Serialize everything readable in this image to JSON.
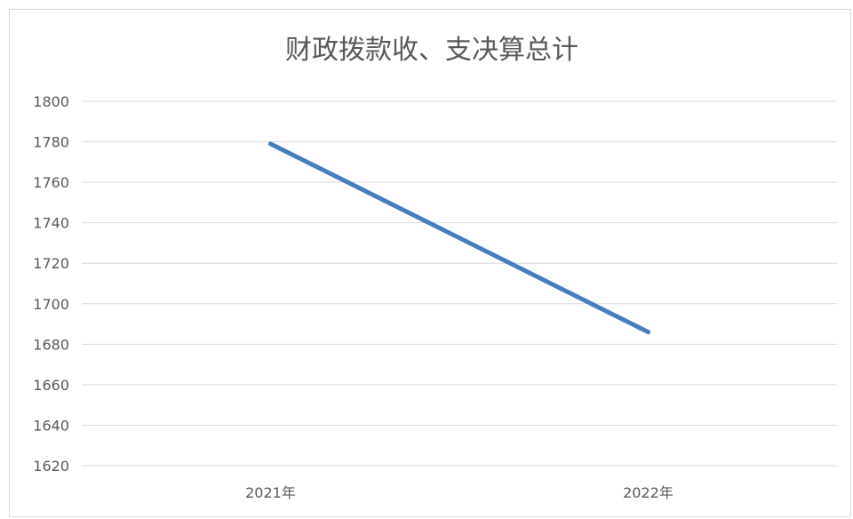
{
  "chart_data": {
    "type": "line",
    "title": "财政拨款收、支决算总计",
    "categories": [
      "2021年",
      "2022年"
    ],
    "series": [
      {
        "values": [
          1779,
          1686
        ]
      }
    ],
    "ylim": [
      1620,
      1800
    ],
    "ytick_step": 20,
    "xlabel": "",
    "ylabel": "",
    "grid": true,
    "legend": "none",
    "colors": {
      "series": "#4a7ebb",
      "grid": "#d9d9d9",
      "text": "#595959"
    }
  }
}
